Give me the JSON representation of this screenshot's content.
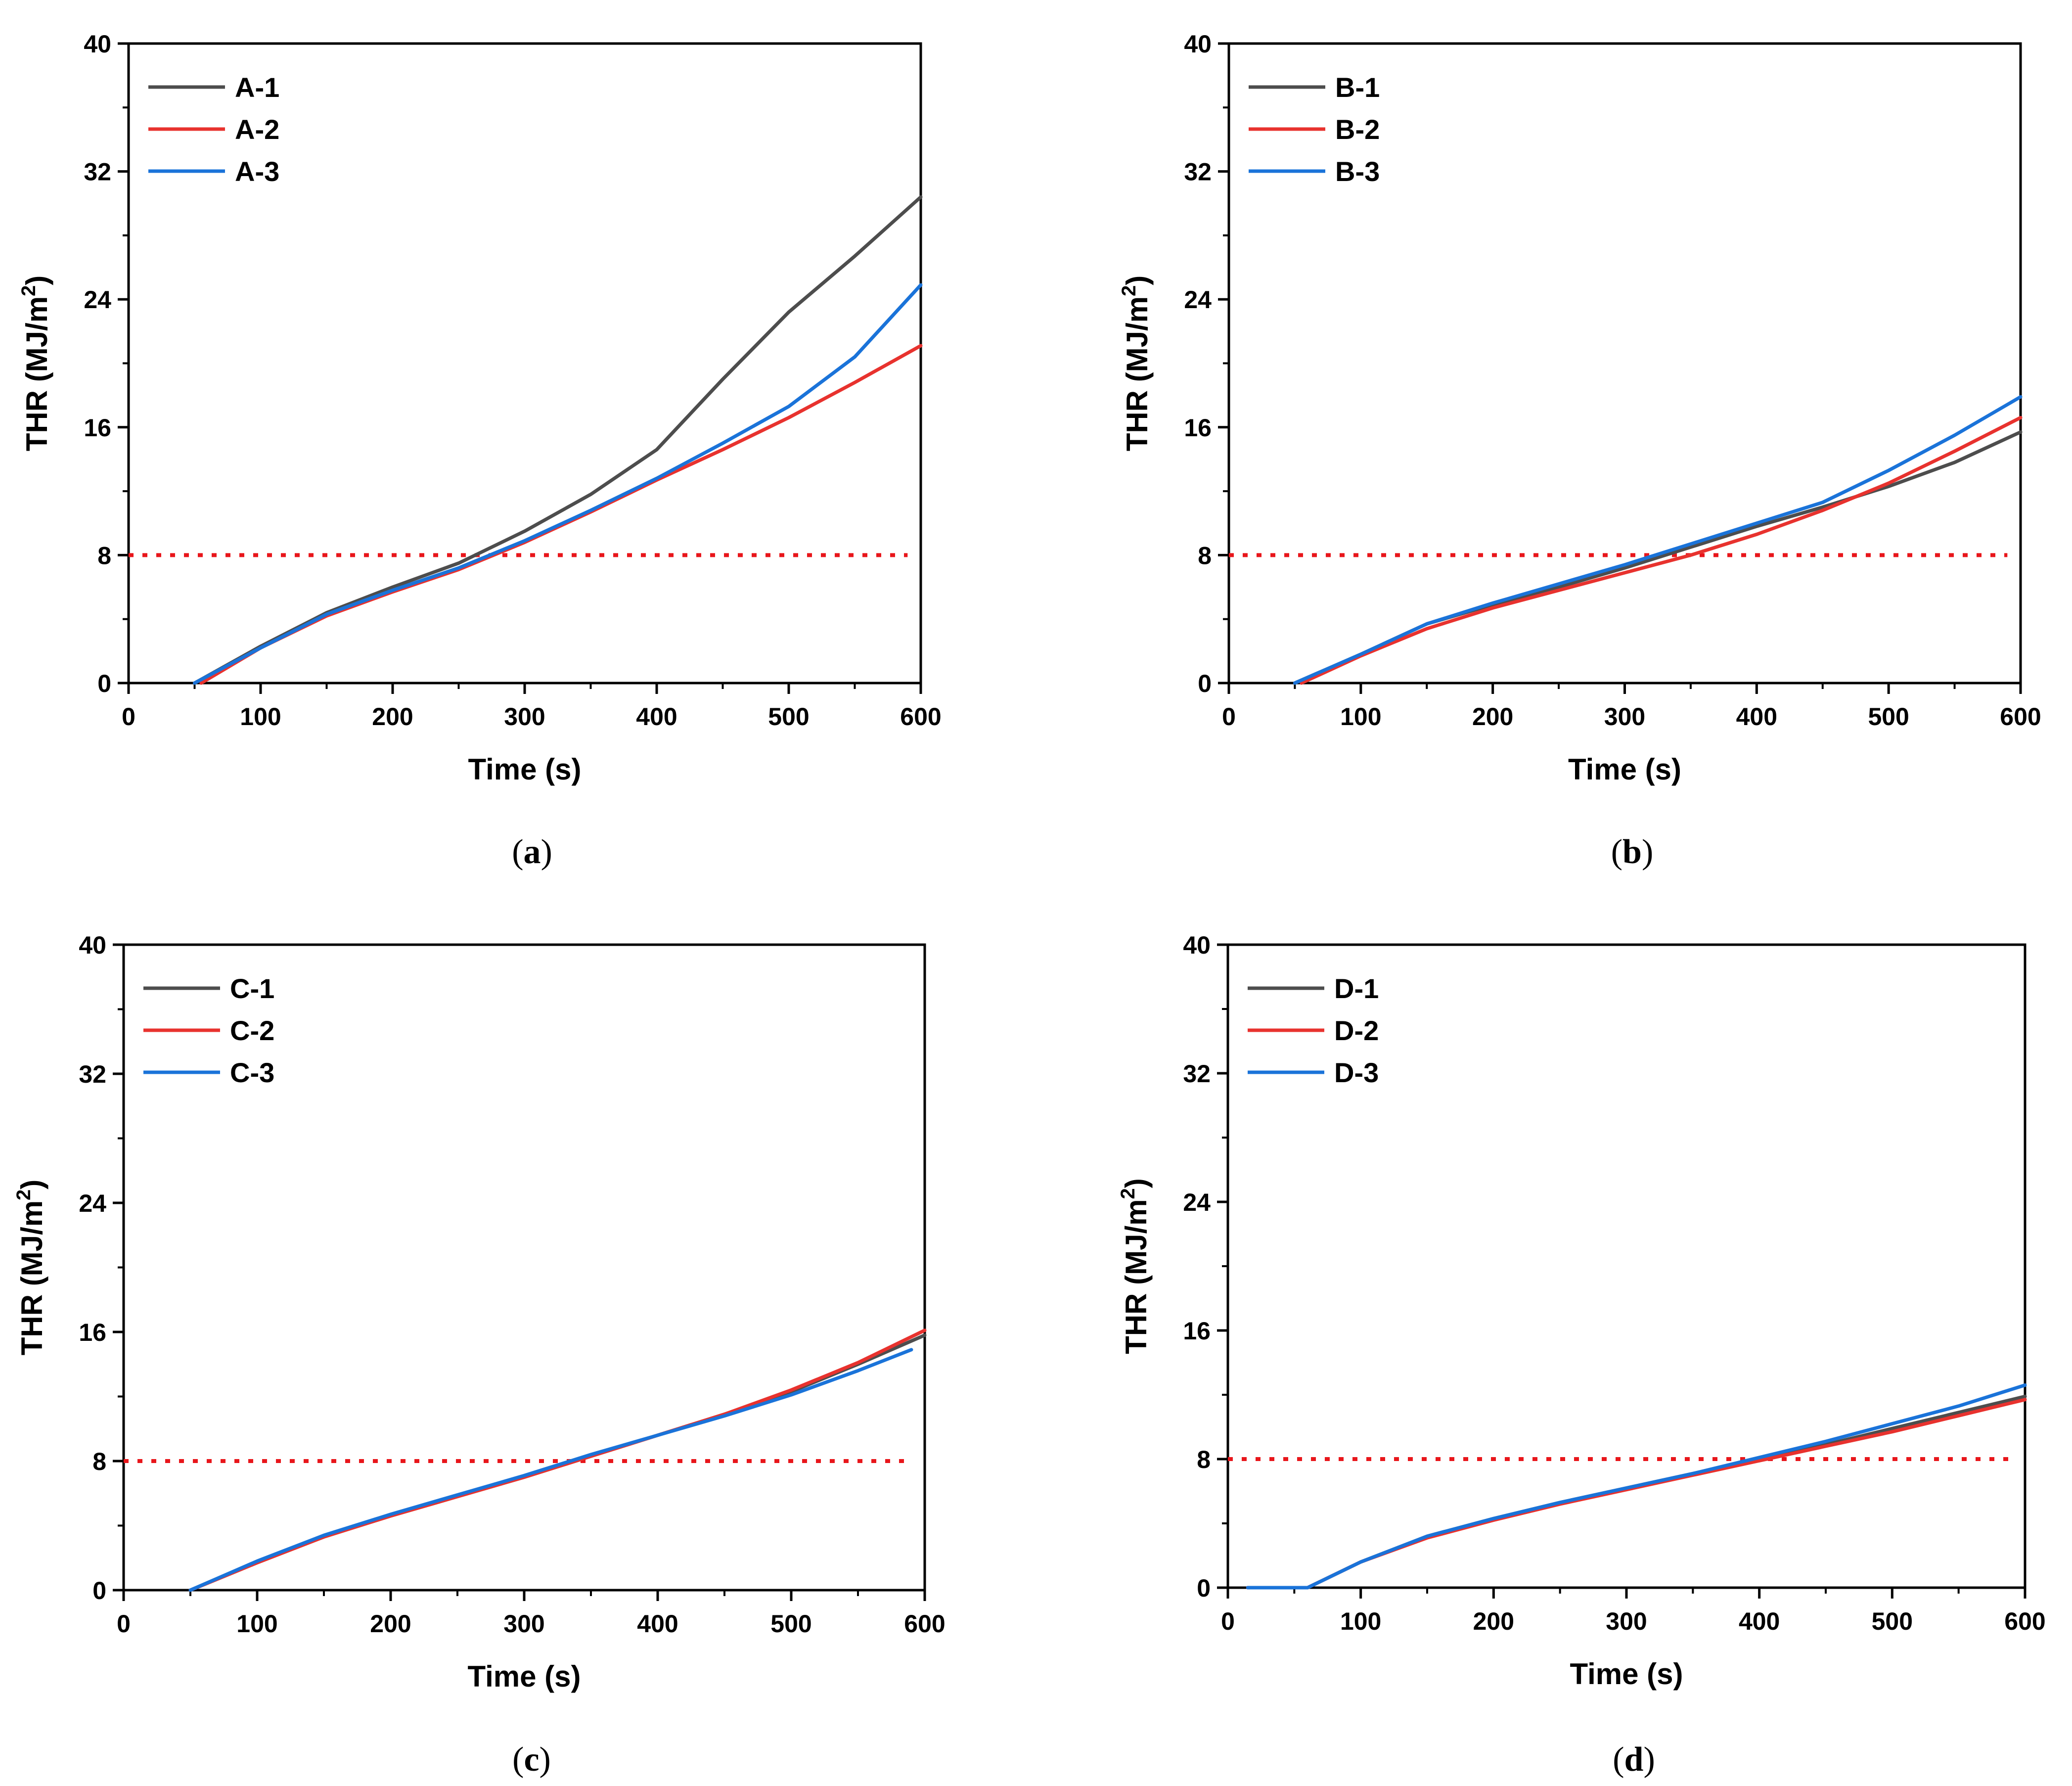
{
  "figure": {
    "panels": [
      "a",
      "b",
      "c",
      "d"
    ]
  },
  "chart_data": [
    {
      "type": "line",
      "panel": "a",
      "caption_letter": "a",
      "xlabel": "Time (s)",
      "ylabel_main": "THR (MJ/m",
      "ylabel_sup": "2",
      "ylabel_close": ")",
      "xlim": [
        0,
        600
      ],
      "ylim": [
        0,
        40
      ],
      "xticks": [
        0,
        100,
        200,
        300,
        400,
        500,
        600
      ],
      "yticks": [
        0,
        8,
        16,
        24,
        32,
        40
      ],
      "reference_line": {
        "y": 8,
        "x_range": [
          0,
          590
        ],
        "color": "#e8161b",
        "style": "dotted"
      },
      "legend_position": "top-left",
      "series": [
        {
          "name": "A-1",
          "color": "#4d4d4d",
          "x": [
            50,
            100,
            150,
            200,
            250,
            300,
            350,
            400,
            450,
            500,
            550,
            600
          ],
          "y": [
            0,
            2.3,
            4.4,
            6.0,
            7.5,
            9.5,
            11.8,
            14.6,
            19.0,
            23.2,
            26.7,
            30.4
          ]
        },
        {
          "name": "A-2",
          "color": "#e8322e",
          "x": [
            55,
            100,
            150,
            200,
            250,
            300,
            350,
            400,
            450,
            500,
            550,
            600
          ],
          "y": [
            0,
            2.2,
            4.2,
            5.7,
            7.1,
            8.8,
            10.7,
            12.7,
            14.6,
            16.6,
            18.8,
            21.1
          ]
        },
        {
          "name": "A-3",
          "color": "#1a73d9",
          "x": [
            50,
            100,
            150,
            200,
            250,
            300,
            350,
            400,
            450,
            500,
            550,
            600
          ],
          "y": [
            0,
            2.2,
            4.3,
            5.8,
            7.2,
            8.9,
            10.8,
            12.8,
            15.0,
            17.3,
            20.4,
            24.9
          ]
        }
      ]
    },
    {
      "type": "line",
      "panel": "b",
      "caption_letter": "b",
      "xlabel": "Time (s)",
      "ylabel_main": "THR (MJ/m",
      "ylabel_sup": "2",
      "ylabel_close": ")",
      "xlim": [
        0,
        600
      ],
      "ylim": [
        0,
        40
      ],
      "xticks": [
        0,
        100,
        200,
        300,
        400,
        500,
        600
      ],
      "yticks": [
        0,
        8,
        16,
        24,
        32,
        40
      ],
      "reference_line": {
        "y": 8,
        "x_range": [
          0,
          590
        ],
        "color": "#e8161b",
        "style": "dotted"
      },
      "legend_position": "top-left",
      "series": [
        {
          "name": "B-1",
          "color": "#4d4d4d",
          "x": [
            50,
            100,
            150,
            200,
            250,
            300,
            350,
            400,
            450,
            500,
            550,
            600
          ],
          "y": [
            0,
            1.8,
            3.7,
            4.9,
            6.0,
            7.2,
            8.5,
            9.8,
            11.0,
            12.3,
            13.8,
            15.7
          ]
        },
        {
          "name": "B-2",
          "color": "#e8322e",
          "x": [
            55,
            100,
            150,
            200,
            250,
            300,
            350,
            400,
            450,
            500,
            550,
            600
          ],
          "y": [
            0,
            1.7,
            3.4,
            4.7,
            5.8,
            6.9,
            8.0,
            9.3,
            10.8,
            12.5,
            14.5,
            16.6
          ]
        },
        {
          "name": "B-3",
          "color": "#1a73d9",
          "x": [
            50,
            100,
            150,
            200,
            250,
            300,
            350,
            400,
            450,
            500,
            550,
            600
          ],
          "y": [
            0,
            1.8,
            3.7,
            5.0,
            6.2,
            7.4,
            8.7,
            10.0,
            11.3,
            13.3,
            15.5,
            17.9
          ]
        }
      ]
    },
    {
      "type": "line",
      "panel": "c",
      "caption_letter": "c",
      "xlabel": "Time (s)",
      "ylabel_main": "THR (MJ/m",
      "ylabel_sup": "2",
      "ylabel_close": ")",
      "xlim": [
        0,
        600
      ],
      "ylim": [
        0,
        40
      ],
      "xticks": [
        0,
        100,
        200,
        300,
        400,
        500,
        600
      ],
      "yticks": [
        0,
        8,
        16,
        24,
        32,
        40
      ],
      "reference_line": {
        "y": 8,
        "x_range": [
          0,
          590
        ],
        "color": "#e8161b",
        "style": "dotted"
      },
      "legend_position": "top-left",
      "series": [
        {
          "name": "C-1",
          "color": "#4d4d4d",
          "x": [
            50,
            100,
            150,
            200,
            250,
            300,
            350,
            400,
            450,
            500,
            550,
            600
          ],
          "y": [
            0,
            1.7,
            3.3,
            4.6,
            5.8,
            7.0,
            8.3,
            9.6,
            10.9,
            12.3,
            14.0,
            15.8
          ]
        },
        {
          "name": "C-2",
          "color": "#e8322e",
          "x": [
            50,
            100,
            150,
            200,
            250,
            300,
            350,
            400,
            450,
            500,
            550,
            600
          ],
          "y": [
            0,
            1.7,
            3.3,
            4.6,
            5.8,
            7.0,
            8.3,
            9.6,
            10.9,
            12.4,
            14.1,
            16.1
          ]
        },
        {
          "name": "C-3",
          "color": "#1a73d9",
          "x": [
            50,
            100,
            150,
            200,
            250,
            300,
            350,
            400,
            450,
            500,
            550,
            590
          ],
          "y": [
            0,
            1.8,
            3.4,
            4.7,
            5.9,
            7.1,
            8.4,
            9.6,
            10.8,
            12.1,
            13.6,
            14.9
          ]
        }
      ]
    },
    {
      "type": "line",
      "panel": "d",
      "caption_letter": "d",
      "xlabel": "Time (s)",
      "ylabel_main": "THR (MJ/m",
      "ylabel_sup": "2",
      "ylabel_close": ")",
      "xlim": [
        0,
        600
      ],
      "ylim": [
        0,
        40
      ],
      "xticks": [
        0,
        100,
        200,
        300,
        400,
        500,
        600
      ],
      "yticks": [
        0,
        8,
        16,
        24,
        32,
        40
      ],
      "reference_line": {
        "y": 8,
        "x_range": [
          0,
          590
        ],
        "color": "#e8161b",
        "style": "dotted"
      },
      "legend_position": "top-left",
      "series": [
        {
          "name": "D-1",
          "color": "#4d4d4d",
          "x": [
            15,
            60,
            100,
            150,
            200,
            250,
            300,
            350,
            400,
            450,
            500,
            550,
            600
          ],
          "y": [
            0,
            0,
            1.6,
            3.2,
            4.3,
            5.3,
            6.2,
            7.1,
            8.0,
            8.9,
            9.9,
            10.9,
            11.9
          ]
        },
        {
          "name": "D-2",
          "color": "#e8322e",
          "x": [
            15,
            60,
            100,
            150,
            200,
            250,
            300,
            350,
            400,
            450,
            500,
            550,
            600
          ],
          "y": [
            0,
            0,
            1.6,
            3.1,
            4.2,
            5.2,
            6.1,
            7.0,
            7.9,
            8.8,
            9.7,
            10.7,
            11.7
          ]
        },
        {
          "name": "D-3",
          "color": "#1a73d9",
          "x": [
            15,
            60,
            100,
            150,
            200,
            250,
            300,
            350,
            400,
            450,
            500,
            550,
            600
          ],
          "y": [
            0,
            0,
            1.6,
            3.2,
            4.3,
            5.3,
            6.2,
            7.1,
            8.1,
            9.1,
            10.2,
            11.3,
            12.6
          ]
        }
      ]
    }
  ]
}
